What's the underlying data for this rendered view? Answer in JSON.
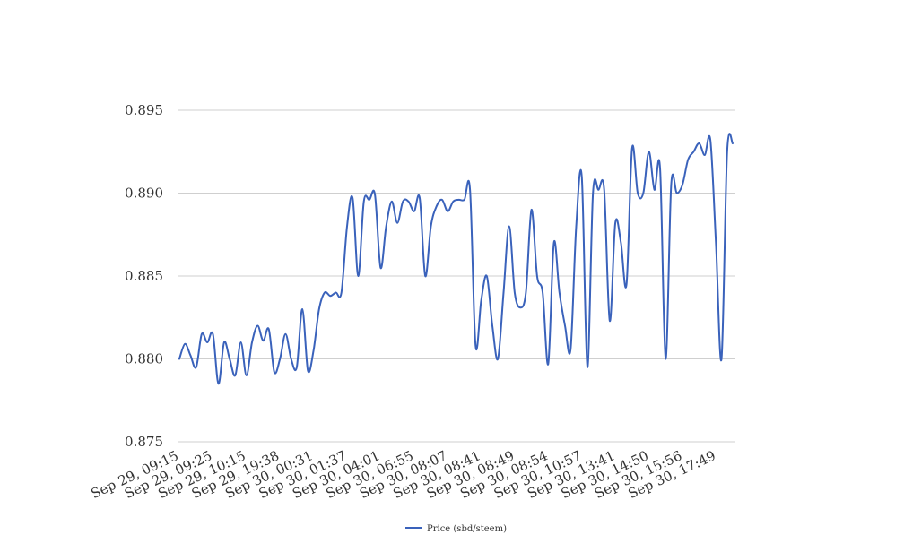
{
  "chart_data": {
    "type": "line",
    "title": "",
    "xlabel": "",
    "ylabel": "",
    "ylim": [
      0.875,
      0.895
    ],
    "yticks": [
      "0.875",
      "0.880",
      "0.885",
      "0.890",
      "0.895"
    ],
    "xtick_labels": [
      "Sep 29, 09:15",
      "Sep 29, 09:25",
      "Sep 29, 10:15",
      "Sep 29, 19:38",
      "Sep 30, 00:31",
      "Sep 30, 01:37",
      "Sep 30, 04:01",
      "Sep 30, 06:55",
      "Sep 30, 08:07",
      "Sep 30, 08:41",
      "Sep 30, 08:49",
      "Sep 30, 08:54",
      "Sep 30, 10:57",
      "Sep 30, 13:41",
      "Sep 30, 14:50",
      "Sep 30, 15:56",
      "Sep 30, 17:49"
    ],
    "grid": true,
    "legend_position": "bottom",
    "series": [
      {
        "name": "Price (sbd/steem)",
        "color": "#3a62bb",
        "values": [
          0.88,
          0.8809,
          0.8802,
          0.8795,
          0.8815,
          0.881,
          0.8815,
          0.8785,
          0.881,
          0.88,
          0.879,
          0.881,
          0.879,
          0.881,
          0.882,
          0.8811,
          0.8818,
          0.8792,
          0.88,
          0.8815,
          0.88,
          0.8795,
          0.883,
          0.8793,
          0.8805,
          0.883,
          0.884,
          0.8838,
          0.884,
          0.884,
          0.888,
          0.8897,
          0.885,
          0.8895,
          0.8896,
          0.8899,
          0.8855,
          0.888,
          0.8895,
          0.8882,
          0.8895,
          0.8895,
          0.8889,
          0.8897,
          0.885,
          0.888,
          0.8892,
          0.8896,
          0.8889,
          0.8895,
          0.8896,
          0.8896,
          0.8902,
          0.8808,
          0.8835,
          0.885,
          0.882,
          0.88,
          0.884,
          0.888,
          0.884,
          0.8831,
          0.884,
          0.889,
          0.885,
          0.884,
          0.8797,
          0.887,
          0.884,
          0.882,
          0.8806,
          0.888,
          0.891,
          0.8795,
          0.89,
          0.8902,
          0.8902,
          0.8823,
          0.8882,
          0.887,
          0.8845,
          0.8927,
          0.89,
          0.89,
          0.8925,
          0.8902,
          0.8915,
          0.88,
          0.8905,
          0.89,
          0.8905,
          0.892,
          0.8925,
          0.893,
          0.8923,
          0.8932,
          0.887,
          0.88,
          0.8925,
          0.893
        ]
      }
    ]
  }
}
